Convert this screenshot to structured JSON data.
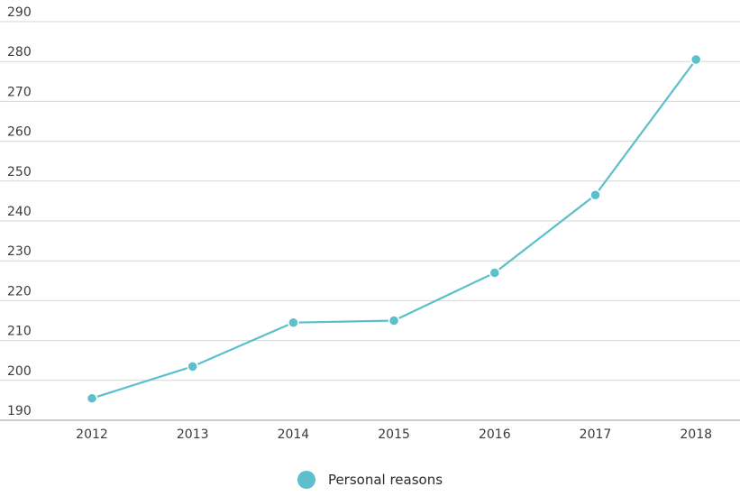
{
  "chart_data": {
    "type": "line",
    "title": "",
    "xlabel": "",
    "ylabel": "",
    "x": [
      "2012",
      "2013",
      "2014",
      "2015",
      "2016",
      "2017",
      "2018"
    ],
    "series": [
      {
        "name": "Personal reasons",
        "color": "#5bbfcc",
        "values": [
          195.5,
          203.5,
          214.5,
          215.0,
          227.0,
          246.5,
          280.5
        ]
      }
    ],
    "y_ticks": [
      "190",
      "200",
      "210",
      "220",
      "230",
      "240",
      "250",
      "260",
      "270",
      "280",
      "290"
    ],
    "ylim": [
      190,
      290
    ],
    "grid": true,
    "legend": "bottom-center"
  }
}
